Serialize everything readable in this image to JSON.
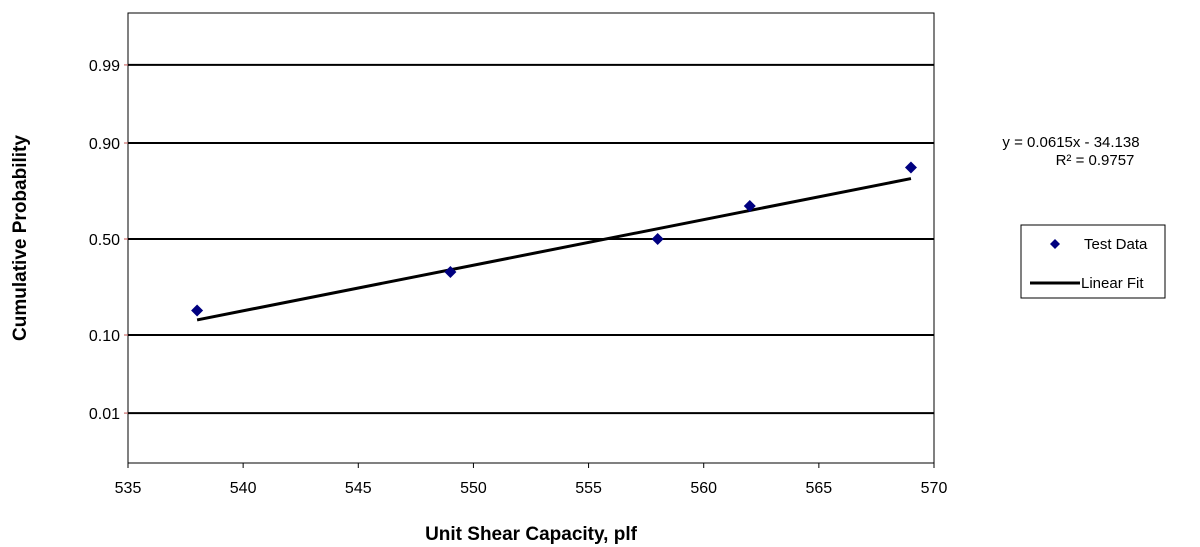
{
  "chart_data": {
    "type": "scatter",
    "xlabel": "Unit Shear Capacity, plf",
    "ylabel": "Cumulative Probability",
    "xlim": [
      535,
      570
    ],
    "x_ticks": [
      535,
      540,
      545,
      550,
      555,
      560,
      565,
      570
    ],
    "x_tick_labels": [
      "535",
      "540",
      "545",
      "550",
      "555",
      "560",
      "565",
      "570"
    ],
    "y_scale": "normal-probability",
    "y_ticks": [
      0.01,
      0.1,
      0.5,
      0.9,
      0.99
    ],
    "y_tick_labels": [
      "0.01",
      "0.10",
      "0.50",
      "0.90",
      "0.99"
    ],
    "grid": "horizontal",
    "colors": {
      "points": "#000080",
      "fit_line": "#000000",
      "tick_marks": "#c0504d"
    },
    "series": [
      {
        "name": "Test Data",
        "kind": "scatter",
        "marker": "diamond",
        "points": [
          {
            "x": 538,
            "y": 0.17
          },
          {
            "x": 549,
            "y": 0.33
          },
          {
            "x": 558,
            "y": 0.5
          },
          {
            "x": 562,
            "y": 0.67
          },
          {
            "x": 569,
            "y": 0.83
          }
        ]
      },
      {
        "name": "Linear Fit",
        "kind": "line",
        "points": [
          {
            "x": 538,
            "y": 0.14
          },
          {
            "x": 569,
            "y": 0.79
          }
        ]
      }
    ],
    "trendline_equation": "y = 0.0615x - 34.138",
    "trendline_r2": "R² = 0.9757",
    "legend": {
      "position": "right",
      "entries": [
        "Test Data",
        "Linear Fit"
      ]
    }
  }
}
